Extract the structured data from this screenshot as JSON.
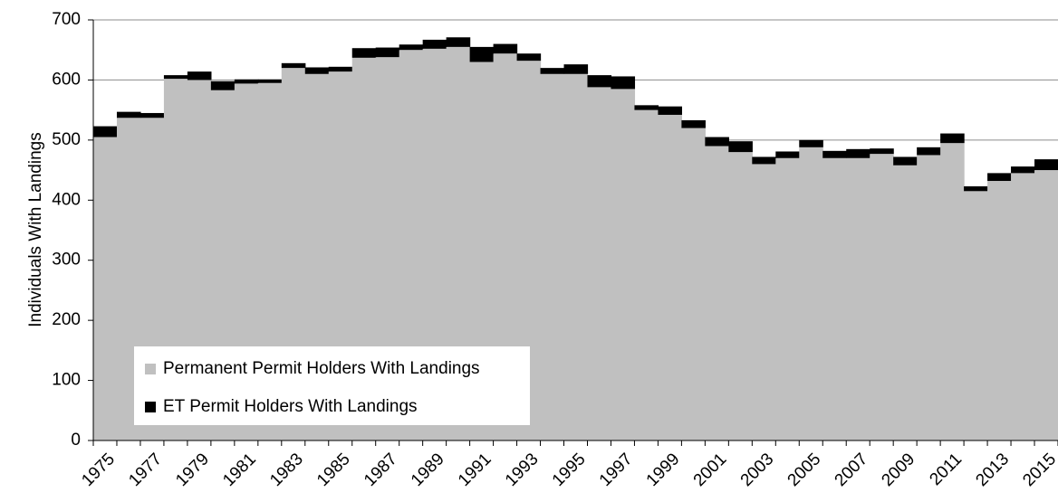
{
  "chart_data": {
    "type": "stacked_area_step",
    "y_label": "Individuals With Landings",
    "categories": [
      "1975",
      null,
      "1977",
      null,
      "1979",
      null,
      "1981",
      null,
      "1983",
      null,
      "1985",
      null,
      "1987",
      null,
      "1989",
      null,
      "1991",
      null,
      "1993",
      null,
      "1995",
      null,
      "1997",
      null,
      "1999",
      null,
      "2001",
      null,
      "2003",
      null,
      "2005",
      null,
      "2007",
      null,
      "2009",
      null,
      "2011",
      null,
      "2013",
      null,
      "2015"
    ],
    "series": [
      {
        "name": "Permanent Permit Holders With Landings",
        "color": "#c0c0c0",
        "values": [
          505,
          537,
          537,
          602,
          600,
          583,
          594,
          595,
          620,
          610,
          614,
          637,
          638,
          650,
          652,
          655,
          630,
          644,
          632,
          610,
          610,
          588,
          585,
          550,
          542,
          520,
          490,
          480,
          460,
          470,
          488,
          470,
          470,
          477,
          458,
          475,
          495,
          415,
          432,
          445,
          450
        ]
      },
      {
        "name": "ET Permit Holders With Landings",
        "color": "#000000",
        "values": [
          18,
          10,
          8,
          6,
          14,
          15,
          7,
          6,
          8,
          11,
          8,
          16,
          16,
          9,
          15,
          16,
          25,
          16,
          12,
          10,
          16,
          20,
          21,
          8,
          14,
          13,
          15,
          18,
          12,
          11,
          12,
          12,
          15,
          9,
          14,
          13,
          16,
          8,
          13,
          11,
          18
        ]
      }
    ],
    "ylim": [
      0,
      700
    ],
    "yticks": [
      0,
      100,
      200,
      300,
      400,
      500,
      600,
      700
    ],
    "grid": true,
    "legend": "lower left"
  }
}
